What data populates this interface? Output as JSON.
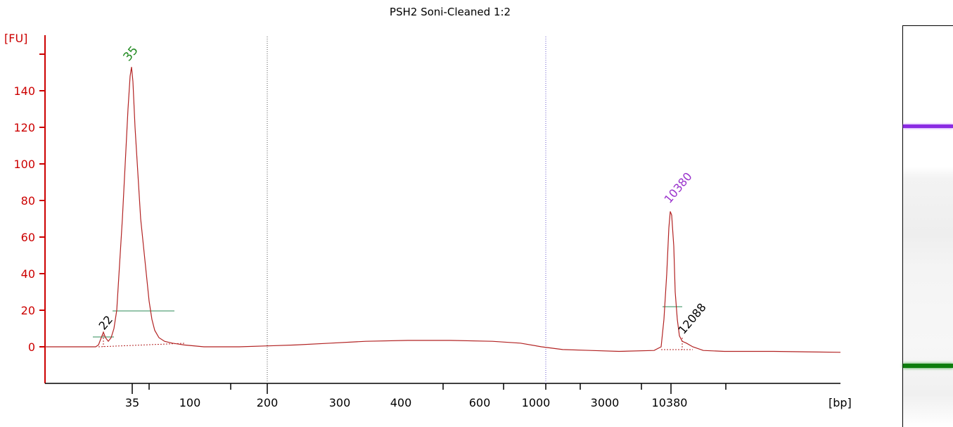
{
  "chart_data": {
    "type": "line",
    "title": "PSH2 Soni-Cleaned 1:2",
    "ylabel": "[FU]",
    "xlabel": "[bp]",
    "ylim": [
      -20,
      160
    ],
    "y_ticks": [
      0,
      20,
      40,
      60,
      80,
      100,
      120,
      140
    ],
    "x_tick_labels": [
      "35",
      "100",
      "200",
      "300",
      "400",
      "600",
      "1000",
      "3000",
      "10380"
    ],
    "peak_labels": [
      {
        "label": "35",
        "color": "#228b22"
      },
      {
        "label": "10380",
        "color": "#9932cc"
      },
      {
        "label": "22",
        "color": "#000000"
      },
      {
        "label": "12088",
        "color": "#000000"
      }
    ],
    "trace_color": "#b22222",
    "axis_color": "#cc0000",
    "series": [
      {
        "values": [
          [
            64,
            0
          ],
          [
            136,
            0
          ],
          [
            140,
            1
          ],
          [
            144,
            5
          ],
          [
            147,
            8
          ],
          [
            150,
            5
          ],
          [
            154,
            3
          ],
          [
            158,
            5
          ],
          [
            162,
            10
          ],
          [
            166,
            20
          ],
          [
            170,
            45
          ],
          [
            174,
            70
          ],
          [
            178,
            100
          ],
          [
            182,
            130
          ],
          [
            185,
            148
          ],
          [
            187,
            153
          ],
          [
            189,
            145
          ],
          [
            192,
            120
          ],
          [
            196,
            95
          ],
          [
            200,
            70
          ],
          [
            204,
            55
          ],
          [
            208,
            40
          ],
          [
            212,
            25
          ],
          [
            216,
            15
          ],
          [
            220,
            9
          ],
          [
            226,
            5
          ],
          [
            234,
            3
          ],
          [
            245,
            2
          ],
          [
            262,
            1
          ],
          [
            290,
            0
          ],
          [
            340,
            0
          ],
          [
            380,
            0.5
          ],
          [
            420,
            1
          ],
          [
            470,
            2
          ],
          [
            520,
            3
          ],
          [
            580,
            3.5
          ],
          [
            640,
            3.5
          ],
          [
            700,
            3
          ],
          [
            740,
            2
          ],
          [
            770,
            0
          ],
          [
            800,
            -1.5
          ],
          [
            840,
            -2
          ],
          [
            880,
            -2.5
          ],
          [
            930,
            -2
          ],
          [
            940,
            0
          ],
          [
            944,
            15
          ],
          [
            948,
            40
          ],
          [
            951,
            65
          ],
          [
            953,
            74
          ],
          [
            955,
            72
          ],
          [
            958,
            55
          ],
          [
            960,
            30
          ],
          [
            963,
            15
          ],
          [
            966,
            6
          ],
          [
            970,
            3
          ],
          [
            976,
            2
          ],
          [
            985,
            0
          ],
          [
            1000,
            -2
          ],
          [
            1030,
            -2.5
          ],
          [
            1100,
            -2.5
          ],
          [
            1195,
            -3
          ]
        ]
      }
    ]
  },
  "gel_lane": {
    "upper_marker_color": "#8a2be2",
    "lower_marker_color": "#0d7d0d"
  }
}
